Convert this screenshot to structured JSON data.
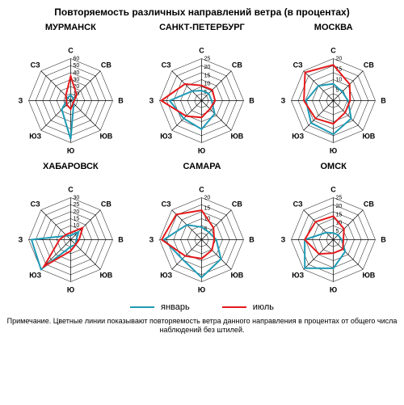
{
  "title": "Повторяемость различных направлений ветра (в процентах)",
  "note": "Примечание. Цветные линии показывают повторяемость ветра данного направления в процентах от общего числа наблюдений без штилей.",
  "directions": [
    "С",
    "СВ",
    "В",
    "ЮВ",
    "Ю",
    "ЮЗ",
    "З",
    "СЗ"
  ],
  "legend": [
    {
      "label": "январь",
      "color": "#1f9bb5"
    },
    {
      "label": "июль",
      "color": "#e41a1c"
    }
  ],
  "chart_style": {
    "cell_size": 155,
    "radius": 52,
    "rings": 6,
    "ring_color": "#000000",
    "axis_color": "#000000",
    "background": "#ffffff",
    "dir_fontsize": 9,
    "tick_fontsize": 7,
    "city_fontsize": 11,
    "line_width": 2
  },
  "cities": [
    {
      "name": "МУРМАНСК",
      "max": 60,
      "tick_step": 10,
      "series": [
        {
          "color": "#1f9bb5",
          "values": [
            8,
            5,
            4,
            6,
            55,
            18,
            6,
            6
          ]
        },
        {
          "color": "#e41a1c",
          "values": [
            35,
            12,
            5,
            5,
            12,
            8,
            6,
            10
          ]
        }
      ]
    },
    {
      "name": "САНКТ-ПЕТЕРБУРГ",
      "max": 25,
      "tick_step": 5,
      "series": [
        {
          "color": "#1f9bb5",
          "values": [
            6,
            6,
            6,
            11,
            17,
            15,
            19,
            8
          ]
        },
        {
          "color": "#e41a1c",
          "values": [
            9,
            9,
            8,
            7,
            10,
            13,
            24,
            14
          ]
        }
      ]
    },
    {
      "name": "МОСКВА",
      "max": 20,
      "tick_step": 5,
      "series": [
        {
          "color": "#1f9bb5",
          "values": [
            8,
            6,
            7,
            12,
            16,
            15,
            13,
            10
          ]
        },
        {
          "color": "#e41a1c",
          "values": [
            17,
            11,
            8,
            8,
            11,
            12,
            14,
            19
          ]
        }
      ]
    },
    {
      "name": "ХАБАРОВСК",
      "max": 30,
      "tick_step": 5,
      "series": [
        {
          "color": "#1f9bb5",
          "values": [
            3,
            8,
            4,
            5,
            5,
            30,
            28,
            4
          ]
        },
        {
          "color": "#e41a1c",
          "values": [
            5,
            12,
            6,
            5,
            8,
            27,
            8,
            5
          ]
        }
      ]
    },
    {
      "name": "САМАРА",
      "max": 20,
      "tick_step": 5,
      "series": [
        {
          "color": "#1f9bb5",
          "values": [
            6,
            5,
            7,
            13,
            18,
            13,
            18,
            10
          ]
        },
        {
          "color": "#e41a1c",
          "values": [
            14,
            8,
            6,
            7,
            9,
            11,
            19,
            17
          ]
        }
      ]
    },
    {
      "name": "ОМСК",
      "max": 25,
      "tick_step": 5,
      "series": [
        {
          "color": "#1f9bb5",
          "values": [
            4,
            4,
            5,
            10,
            17,
            24,
            17,
            6
          ]
        },
        {
          "color": "#e41a1c",
          "values": [
            14,
            9,
            6,
            8,
            8,
            12,
            17,
            15
          ]
        }
      ]
    }
  ]
}
